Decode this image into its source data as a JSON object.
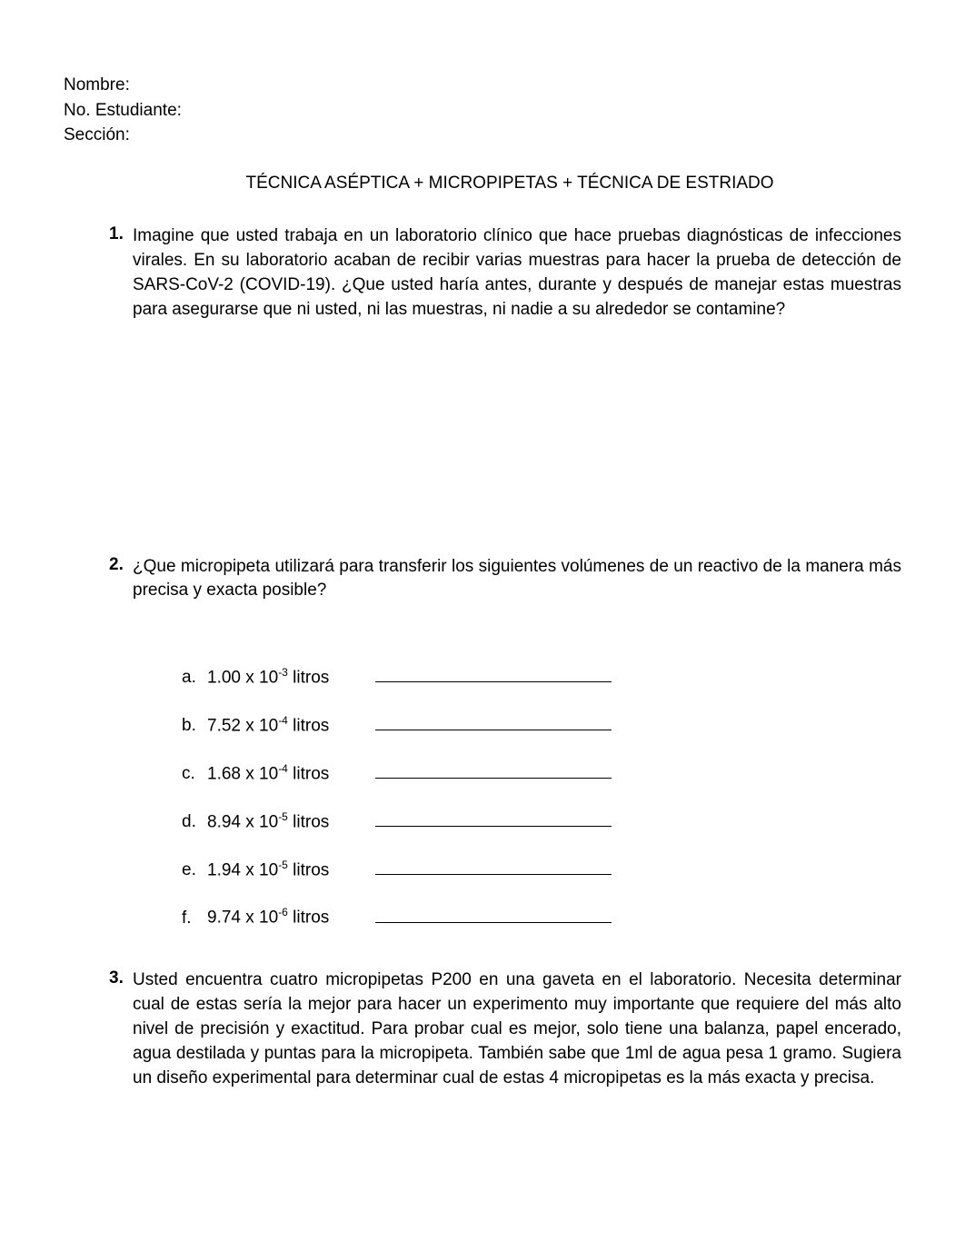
{
  "header": {
    "name_label": "Nombre:",
    "student_no_label": "No. Estudiante:",
    "section_label": "Sección:"
  },
  "title": "TÉCNICA ASÉPTICA + MICROPIPETAS + TÉCNICA DE ESTRIADO",
  "q1": {
    "num": "1.",
    "text": "Imagine que usted trabaja en un laboratorio clínico que hace pruebas diagnósticas de infecciones virales. En su laboratorio acaban de recibir varias muestras para hacer la prueba de detección de SARS-CoV-2 (COVID-19). ¿Que usted haría antes, durante y después de manejar estas muestras para asegurarse que ni usted, ni las muestras, ni nadie a su alrededor se contamine?"
  },
  "q2": {
    "num": "2.",
    "text": "¿Que micropipeta utilizará para transferir los siguientes volúmenes de un reactivo de la manera más precisa y exacta posible?",
    "items": [
      {
        "letter": "a.",
        "coeff": "1.00",
        "exp": "-3",
        "unit": "litros"
      },
      {
        "letter": "b.",
        "coeff": "7.52",
        "exp": "-4",
        "unit": "litros"
      },
      {
        "letter": "c.",
        "coeff": "1.68",
        "exp": "-4",
        "unit": "litros"
      },
      {
        "letter": "d.",
        "coeff": "8.94",
        "exp": "-5",
        "unit": "litros"
      },
      {
        "letter": "e.",
        "coeff": "1.94",
        "exp": "-5",
        "unit": "litros"
      },
      {
        "letter": "f.",
        "coeff": "9.74",
        "exp": "-6",
        "unit": "litros"
      }
    ]
  },
  "q3": {
    "num": "3.",
    "text": "Usted encuentra cuatro micropipetas P200 en una gaveta en el laboratorio. Necesita determinar cual de estas sería la mejor para hacer un experimento muy importante que requiere del más alto nivel de precisión y exactitud. Para probar cual es mejor, solo tiene una balanza, papel encerado, agua destilada y puntas para la micropipeta. También sabe que 1ml de agua pesa 1 gramo. Sugiera un diseño experimental para determinar cual de estas 4 micropipetas es la más exacta y precisa."
  }
}
